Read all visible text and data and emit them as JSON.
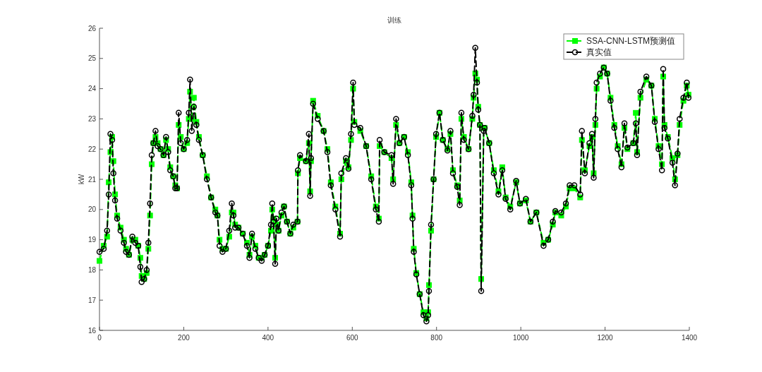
{
  "chart_data": {
    "type": "line",
    "title": "训练",
    "ylabel": "kW",
    "xlim": [
      0,
      1400
    ],
    "ylim": [
      16,
      26
    ],
    "xticks": [
      0,
      200,
      400,
      600,
      800,
      1000,
      1200,
      1400
    ],
    "yticks": [
      16,
      17,
      18,
      19,
      20,
      21,
      22,
      23,
      24,
      25,
      26
    ],
    "x": [
      0,
      10,
      18,
      22,
      26,
      30,
      33,
      37,
      42,
      50,
      58,
      63,
      70,
      78,
      85,
      92,
      97,
      100,
      106,
      112,
      116,
      120,
      124,
      128,
      133,
      138,
      145,
      152,
      158,
      163,
      168,
      175,
      180,
      184,
      188,
      193,
      200,
      208,
      212,
      215,
      219,
      224,
      230,
      236,
      245,
      255,
      265,
      275,
      280,
      285,
      292,
      300,
      308,
      314,
      318,
      322,
      330,
      340,
      350,
      356,
      362,
      370,
      378,
      385,
      392,
      400,
      407,
      410,
      413,
      417,
      420,
      425,
      432,
      438,
      445,
      453,
      460,
      470,
      471,
      476,
      490,
      497,
      500,
      502,
      507,
      518,
      532,
      541,
      549,
      560,
      571,
      574,
      585,
      591,
      597,
      602,
      605,
      619,
      633,
      645,
      656,
      663,
      665,
      676,
      693,
      697,
      704,
      712,
      723,
      732,
      740,
      743,
      746,
      752,
      760,
      769,
      776,
      780,
      782,
      787,
      793,
      799,
      807,
      815,
      826,
      833,
      839,
      849,
      855,
      859,
      865,
      876,
      885,
      888,
      892,
      896,
      899,
      903,
      906,
      912,
      914,
      925,
      936,
      947,
      956,
      964,
      975,
      989,
      998,
      1012,
      1023,
      1037,
      1054,
      1065,
      1076,
      1082,
      1096,
      1107,
      1116,
      1127,
      1141,
      1145,
      1152,
      1163,
      1169,
      1173,
      1177,
      1180,
      1188,
      1197,
      1205,
      1213,
      1222,
      1230,
      1239,
      1246,
      1253,
      1267,
      1273,
      1276,
      1284,
      1298,
      1310,
      1318,
      1327,
      1335,
      1338,
      1341,
      1349,
      1360,
      1366,
      1372,
      1377,
      1386,
      1394,
      1398
    ],
    "series": [
      {
        "name": "SSA-CNN-LSTM预测值",
        "color": "#00ff00",
        "marker": "square",
        "line_style": "dashed",
        "values": [
          18.3,
          18.8,
          19.1,
          20.9,
          21.9,
          22.4,
          21.6,
          20.5,
          19.8,
          19.4,
          19.0,
          18.7,
          18.5,
          19.0,
          19.0,
          18.8,
          18.4,
          17.8,
          17.7,
          17.9,
          18.7,
          19.8,
          21.5,
          22.2,
          22.4,
          22.2,
          22.0,
          21.8,
          22.3,
          22.0,
          21.4,
          21.1,
          20.8,
          20.7,
          22.8,
          22.4,
          22.0,
          22.2,
          23.0,
          23.9,
          23.0,
          23.7,
          22.9,
          22.4,
          21.8,
          21.1,
          20.4,
          20.0,
          19.8,
          19.0,
          18.7,
          18.7,
          19.1,
          19.9,
          19.9,
          19.5,
          19.4,
          19.2,
          18.9,
          18.5,
          19.1,
          18.8,
          18.4,
          18.4,
          18.5,
          18.8,
          19.3,
          20.0,
          19.7,
          18.4,
          19.5,
          19.3,
          19.8,
          20.1,
          19.6,
          19.2,
          19.4,
          19.6,
          21.2,
          21.7,
          21.6,
          22.2,
          20.6,
          21.6,
          23.6,
          23.1,
          22.6,
          22.0,
          20.9,
          20.1,
          19.2,
          21.0,
          21.6,
          21.4,
          22.3,
          24.0,
          22.9,
          22.6,
          22.1,
          21.1,
          20.1,
          19.7,
          22.1,
          21.9,
          21.7,
          21.0,
          22.8,
          22.2,
          22.4,
          21.9,
          20.9,
          19.8,
          18.7,
          17.9,
          17.2,
          16.6,
          16.4,
          16.6,
          17.5,
          19.3,
          21.0,
          22.4,
          23.2,
          22.3,
          22.0,
          22.5,
          21.3,
          20.8,
          20.3,
          23.0,
          22.4,
          22.0,
          23.0,
          23.7,
          24.5,
          24.3,
          23.4,
          22.8,
          17.7,
          22.7,
          22.7,
          22.2,
          21.3,
          20.6,
          21.4,
          20.4,
          20.1,
          20.9,
          20.2,
          20.3,
          19.6,
          19.9,
          18.9,
          19.0,
          19.5,
          19.9,
          19.8,
          20.1,
          20.7,
          20.7,
          20.4,
          22.3,
          21.3,
          22.1,
          22.4,
          21.2,
          22.8,
          24.0,
          24.4,
          24.7,
          24.5,
          23.7,
          22.8,
          22.1,
          21.5,
          22.7,
          22.0,
          22.2,
          23.2,
          21.9,
          23.7,
          24.3,
          24.1,
          23.0,
          22.1,
          21.5,
          24.4,
          22.8,
          22.4,
          21.7,
          21.0,
          21.8,
          22.8,
          23.6,
          24.1,
          23.8
        ]
      },
      {
        "name": "真实值",
        "color": "#000000",
        "marker": "circle",
        "line_style": "dashed",
        "values": [
          18.6,
          18.7,
          19.3,
          20.5,
          22.5,
          22.3,
          21.2,
          20.3,
          19.7,
          19.3,
          18.9,
          18.6,
          18.5,
          19.1,
          18.9,
          18.8,
          18.1,
          17.6,
          17.7,
          18.0,
          18.9,
          20.2,
          21.8,
          22.2,
          22.6,
          22.1,
          22.0,
          21.8,
          22.4,
          21.9,
          21.3,
          21.1,
          20.7,
          20.7,
          23.2,
          22.2,
          22.0,
          22.3,
          23.2,
          24.3,
          22.6,
          23.4,
          22.8,
          22.3,
          21.8,
          21.0,
          20.4,
          19.9,
          19.8,
          18.8,
          18.6,
          18.7,
          19.3,
          20.2,
          19.8,
          19.4,
          19.4,
          19.2,
          18.8,
          18.4,
          19.2,
          18.7,
          18.4,
          18.3,
          18.5,
          18.8,
          19.5,
          20.2,
          19.6,
          18.2,
          19.7,
          19.3,
          19.9,
          20.1,
          19.6,
          19.2,
          19.5,
          19.6,
          21.3,
          21.8,
          21.6,
          22.5,
          20.45,
          21.7,
          23.5,
          23.0,
          22.6,
          21.9,
          20.8,
          20.0,
          19.1,
          21.2,
          21.7,
          21.35,
          22.5,
          24.2,
          22.8,
          22.7,
          22.1,
          21.0,
          20.0,
          19.6,
          22.3,
          21.9,
          21.8,
          20.85,
          23.0,
          22.2,
          22.4,
          21.8,
          20.8,
          19.7,
          18.6,
          17.85,
          17.2,
          16.5,
          16.3,
          16.5,
          17.3,
          19.5,
          21.0,
          22.5,
          23.2,
          22.3,
          21.95,
          22.6,
          21.2,
          20.75,
          20.15,
          23.2,
          22.3,
          22.0,
          23.1,
          23.8,
          25.35,
          24.2,
          23.3,
          22.8,
          17.3,
          22.6,
          22.7,
          22.2,
          21.2,
          20.5,
          21.3,
          20.35,
          20.0,
          20.95,
          20.2,
          20.35,
          19.6,
          19.9,
          18.8,
          19.0,
          19.6,
          19.95,
          19.9,
          20.2,
          20.8,
          20.8,
          20.5,
          22.6,
          21.2,
          22.2,
          22.5,
          21.05,
          23.0,
          24.2,
          24.5,
          24.7,
          24.5,
          23.6,
          22.7,
          22.0,
          21.4,
          22.85,
          22.05,
          22.2,
          22.85,
          21.8,
          23.9,
          24.4,
          24.1,
          22.9,
          22.0,
          21.3,
          24.65,
          22.7,
          22.35,
          21.55,
          20.8,
          21.85,
          23.0,
          23.7,
          24.2,
          23.7
        ]
      }
    ],
    "legend": "top right",
    "grid": false
  }
}
